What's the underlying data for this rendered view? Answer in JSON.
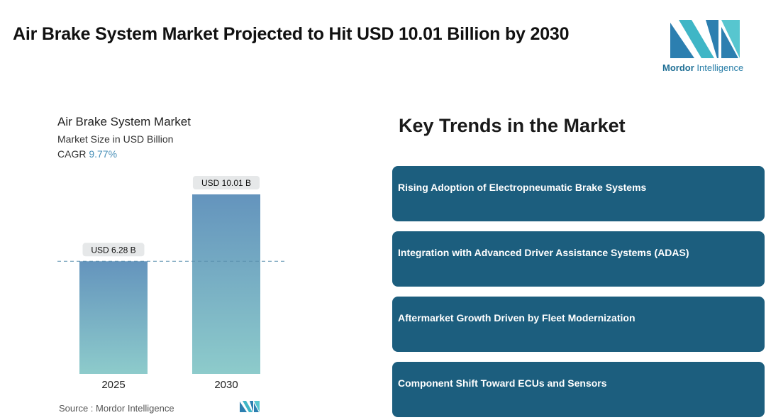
{
  "page": {
    "title": "Air Brake System Market Projected to Hit USD 10.01 Billion by 2030"
  },
  "logo": {
    "brand": "Mordor",
    "suffix": "Intelligence"
  },
  "chart_data": {
    "type": "bar",
    "title": "Air Brake System Market",
    "subtitle": "Market Size in USD Billion",
    "cagr_label": "CAGR",
    "cagr_value": "9.77%",
    "categories": [
      "2025",
      "2030"
    ],
    "values": [
      6.28,
      10.01
    ],
    "data_labels": [
      "USD 6.28 B",
      "USD 10.01 B"
    ],
    "ylim": [
      0,
      10.01
    ],
    "reference_line_value": 6.28,
    "bar_gradient": [
      "#6494bd",
      "#8dcbcb"
    ],
    "label_bg": "#e6e8e9",
    "reference_line_color": "#5a8fae",
    "grid": false
  },
  "source": {
    "label": "Source :",
    "name": "Mordor Intelligence"
  },
  "trends": {
    "heading": "Key Trends in the Market",
    "box_color": "#1c5e7e",
    "items": [
      "Rising Adoption of Electropneumatic Brake Systems",
      "Integration with Advanced Driver Assistance Systems (ADAS)",
      "Aftermarket Growth Driven by Fleet Modernization",
      "Component Shift Toward ECUs and Sensors"
    ]
  }
}
